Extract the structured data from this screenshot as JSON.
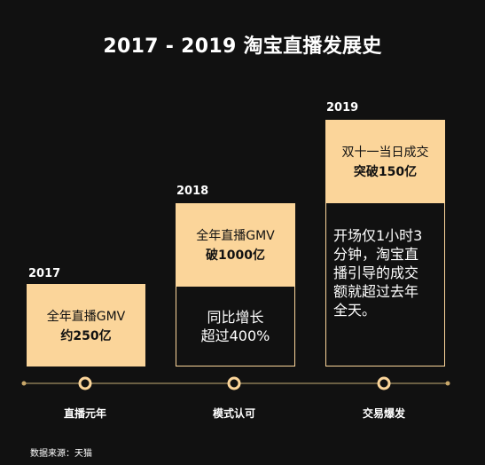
{
  "title": "2017 - 2019 淘宝直播发展史",
  "milestones": [
    {
      "year": "2017",
      "metric_line1": "全年直播GMV",
      "metric_line2": "约250亿",
      "description": "",
      "stage": "直播元年"
    },
    {
      "year": "2018",
      "metric_line1": "全年直播GMV",
      "metric_line2": "破1000亿",
      "description_line1": "同比增长",
      "description_line2": "超过400%",
      "stage": "模式认可"
    },
    {
      "year": "2019",
      "metric_line1": "双十一当日成交",
      "metric_line2": "突破150亿",
      "description_lines": [
        "开场仅1小时3",
        "分钟，淘宝直",
        "播引导的成交",
        "额就超过去年",
        "全天。"
      ],
      "stage": "交易爆发"
    }
  ],
  "source": "数据来源：天猫",
  "colors": {
    "background": "#111111",
    "accent": "#fbd59a",
    "timeline_line": "#8a7a56",
    "text": "#ffffff"
  }
}
